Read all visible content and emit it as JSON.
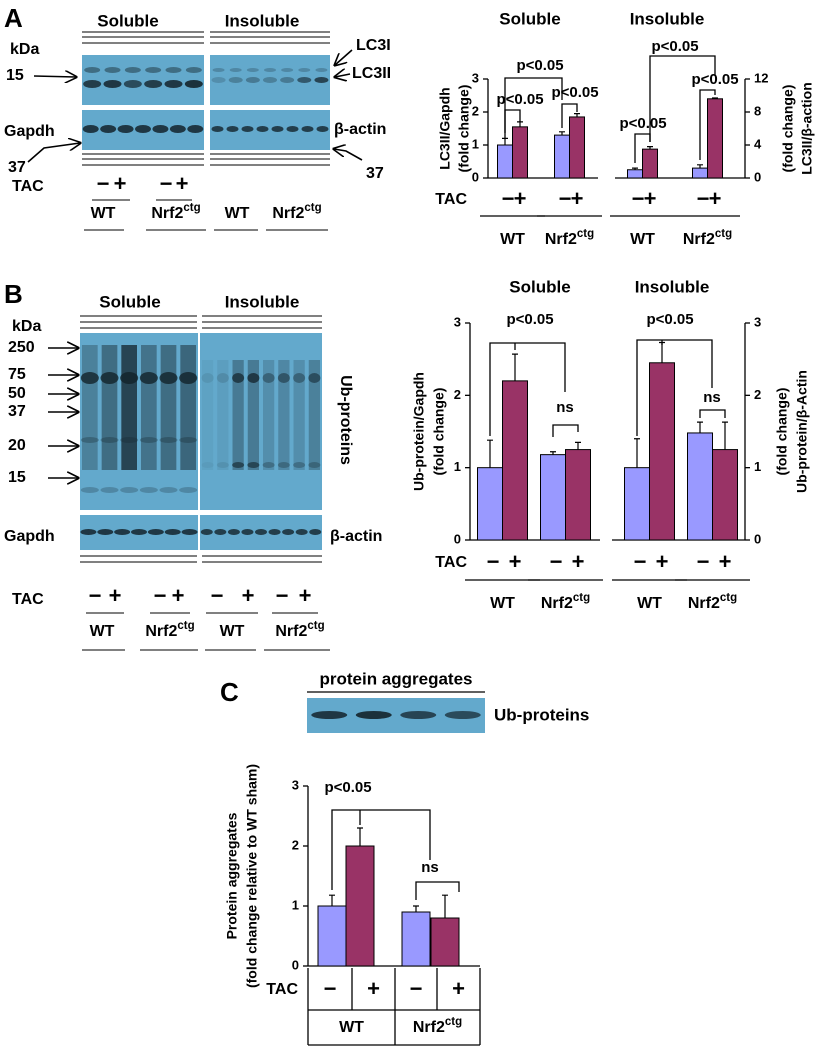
{
  "chart_data": [
    {
      "type": "bar",
      "title": "Soluble",
      "y_label": [
        "LC3II/Gapdh",
        "(fold change)"
      ],
      "row_label": "TAC",
      "categories": [
        "−",
        "+",
        "−",
        "+"
      ],
      "groups": [
        {
          "name": "WT"
        },
        {
          "name": "Nrf2",
          "superscript": "ctg"
        }
      ],
      "values": [
        1.0,
        1.55,
        1.3,
        1.85
      ],
      "errors": [
        0.2,
        0.15,
        0.1,
        0.1
      ],
      "colors": [
        "#9999ff",
        "#993366",
        "#9999ff",
        "#993366"
      ],
      "ylim": [
        0,
        3
      ],
      "yticks": [
        0,
        1,
        2,
        3
      ],
      "annotations": [
        "p<0.05",
        "p<0.05",
        "p<0.05"
      ]
    },
    {
      "type": "bar",
      "title": "Insoluble",
      "y_label": [
        "(fold change)",
        "LC3II/β-action"
      ],
      "categories": [
        "−",
        "+",
        "−",
        "+"
      ],
      "groups": [
        {
          "name": "WT"
        },
        {
          "name": "Nrf2",
          "superscript": "ctg"
        }
      ],
      "values": [
        1.0,
        3.5,
        1.2,
        9.6
      ],
      "errors": [
        0.2,
        0.3,
        0.4,
        0.1
      ],
      "colors": [
        "#9999ff",
        "#993366",
        "#9999ff",
        "#993366"
      ],
      "ylim": [
        0,
        12
      ],
      "yticks": [
        0,
        4,
        8,
        12
      ],
      "axis_side": "right",
      "annotations": [
        "p<0.05",
        "p<0.05",
        "p<0.05"
      ]
    },
    {
      "type": "bar",
      "title": "Soluble",
      "y_label": [
        "Ub-protein/Gapdh",
        "(fold change)"
      ],
      "row_label": "TAC",
      "categories": [
        "−",
        "+",
        "−",
        "+"
      ],
      "groups": [
        {
          "name": "WT"
        },
        {
          "name": "Nrf2",
          "superscript": "ctg"
        }
      ],
      "values": [
        1.0,
        2.2,
        1.18,
        1.25
      ],
      "errors": [
        0.38,
        0.37,
        0.04,
        0.1
      ],
      "colors": [
        "#9999ff",
        "#993366",
        "#9999ff",
        "#993366"
      ],
      "ylim": [
        0,
        3
      ],
      "yticks": [
        0,
        1,
        2,
        3
      ],
      "annotations": [
        "p<0.05",
        "ns"
      ]
    },
    {
      "type": "bar",
      "title": "Insoluble",
      "y_label": [
        "(fold change)",
        "Ub-protein/β-Actin"
      ],
      "categories": [
        "−",
        "+",
        "−",
        "+"
      ],
      "groups": [
        {
          "name": "WT"
        },
        {
          "name": "Nrf2",
          "superscript": "ctg"
        }
      ],
      "values": [
        1.0,
        2.45,
        1.48,
        1.25
      ],
      "errors": [
        0.4,
        0.28,
        0.15,
        0.38
      ],
      "colors": [
        "#9999ff",
        "#993366",
        "#9999ff",
        "#993366"
      ],
      "ylim": [
        0,
        3
      ],
      "yticks": [
        0,
        1,
        2,
        3
      ],
      "axis_side": "right",
      "annotations": [
        "p<0.05",
        "ns"
      ]
    },
    {
      "type": "bar",
      "y_label": [
        "Protein aggregates",
        "(fold change relative to WT sham)"
      ],
      "row_label": "TAC",
      "categories": [
        "−",
        "+",
        "−",
        "+"
      ],
      "groups": [
        {
          "name": "WT"
        },
        {
          "name": "Nrf2",
          "superscript": "ctg"
        }
      ],
      "values": [
        1.0,
        2.0,
        0.9,
        0.8
      ],
      "errors": [
        0.18,
        0.3,
        0.1,
        0.38
      ],
      "colors": [
        "#9999ff",
        "#993366",
        "#9999ff",
        "#993366"
      ],
      "ylim": [
        0,
        3
      ],
      "yticks": [
        0,
        1,
        2,
        3
      ],
      "annotations": [
        "p<0.05",
        "ns"
      ]
    }
  ],
  "blots": [
    {
      "panel": "A",
      "headers": [
        "Soluble",
        "Insoluble"
      ],
      "unit": "kDa",
      "markers": [
        "15",
        "37",
        "37"
      ],
      "labels": [
        "LC3I",
        "LC3II",
        "Gapdh",
        "β-actin"
      ],
      "row_label": "TAC",
      "signs": [
        "−",
        "+",
        "−",
        "+"
      ],
      "groups": [
        {
          "name": "WT"
        },
        {
          "name": "Nrf2",
          "superscript": "ctg"
        },
        {
          "name": "WT"
        },
        {
          "name": "Nrf2",
          "superscript": "ctg"
        }
      ]
    },
    {
      "panel": "B",
      "headers": [
        "Soluble",
        "Insoluble"
      ],
      "unit": "kDa",
      "markers": [
        "250",
        "75",
        "50",
        "37",
        "20",
        "15"
      ],
      "labels": [
        "Ub-proteins",
        "Gapdh",
        "β-actin"
      ],
      "row_label": "TAC",
      "signs": [
        "−",
        "+",
        "−",
        "+",
        "−",
        "+",
        "−",
        "+"
      ],
      "groups": [
        {
          "name": "WT"
        },
        {
          "name": "Nrf2",
          "superscript": "ctg"
        },
        {
          "name": "WT"
        },
        {
          "name": "Nrf2",
          "superscript": "ctg"
        }
      ]
    },
    {
      "panel": "C",
      "header": "protein aggregates",
      "labels": [
        "Ub-proteins"
      ]
    }
  ]
}
